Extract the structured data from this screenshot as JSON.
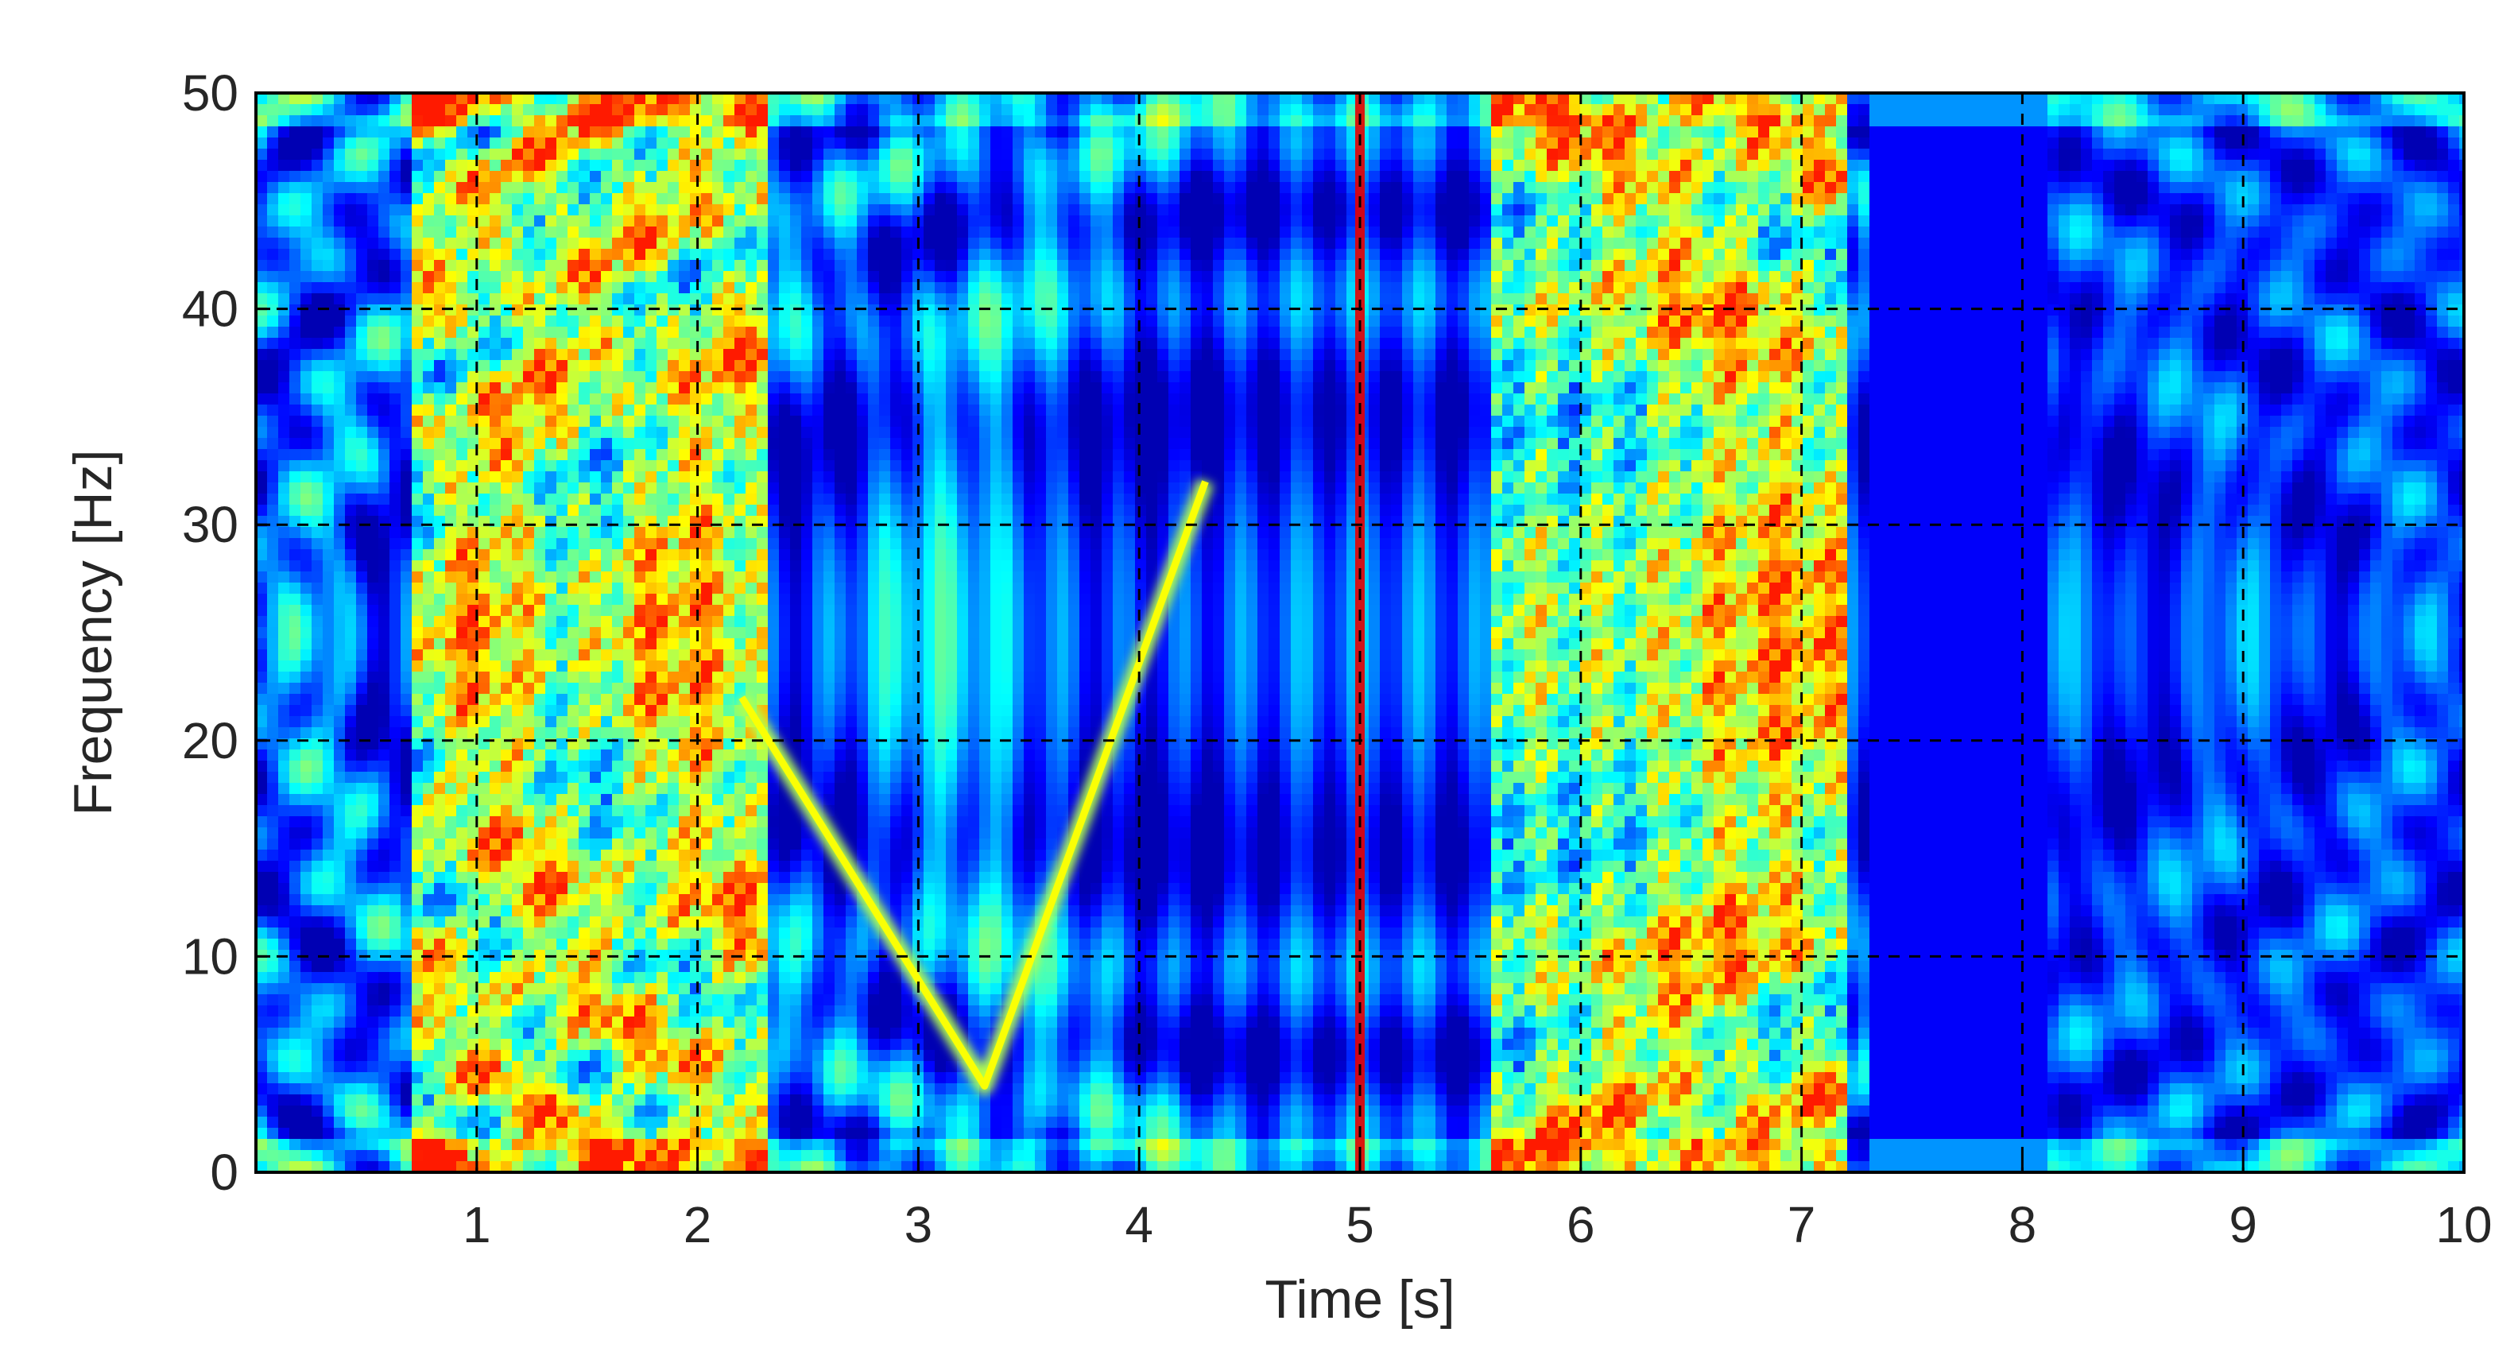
{
  "chart_data": {
    "type": "heatmap",
    "title": "",
    "xlabel": "Time [s]",
    "ylabel": "Frequency [Hz]",
    "xlim": [
      0,
      10
    ],
    "ylim": [
      0,
      50
    ],
    "xticks": [
      1,
      2,
      3,
      4,
      5,
      6,
      7,
      8,
      9,
      10
    ],
    "yticks": [
      0,
      10,
      20,
      30,
      40,
      50
    ],
    "xtick_labels": [
      "1",
      "2",
      "3",
      "4",
      "5",
      "6",
      "7",
      "8",
      "9",
      "10"
    ],
    "ytick_labels": [
      "0",
      "10",
      "20",
      "30",
      "40",
      "50"
    ],
    "grid": true,
    "colormap": "jet",
    "background_color": "#00008f",
    "features": [
      {
        "kind": "chirp",
        "points": [
          [
            2.2,
            22
          ],
          [
            3.3,
            4
          ],
          [
            4.3,
            32
          ]
        ]
      },
      {
        "kind": "impulse",
        "time": 5.0,
        "freq_range": [
          0,
          50
        ]
      },
      {
        "kind": "burst",
        "time_range": [
          0.7,
          2.3
        ]
      },
      {
        "kind": "burst",
        "time_range": [
          5.6,
          7.2
        ]
      }
    ]
  }
}
